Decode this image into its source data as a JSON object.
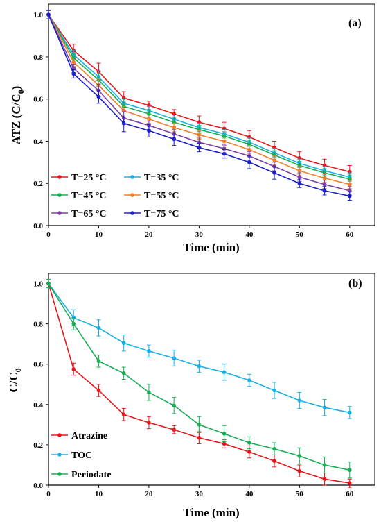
{
  "chart_data": [
    {
      "type": "line",
      "panel_label": "(a)",
      "xlabel": "Time (min)",
      "ylabel": "ATZ (C/C",
      "ylabel_sub": "0",
      "ylabel_end": ")",
      "xlim": [
        0,
        65
      ],
      "ylim": [
        0,
        1.05
      ],
      "xticks": [
        "0",
        "10",
        "20",
        "30",
        "40",
        "50",
        "60"
      ],
      "yticks": [
        "0.0",
        "0.2",
        "0.4",
        "0.6",
        "0.8",
        "1.0"
      ],
      "grid": false,
      "legend_position": "bottom-left",
      "x": [
        0,
        5,
        10,
        15,
        20,
        25,
        30,
        35,
        40,
        45,
        50,
        55,
        60
      ],
      "series": [
        {
          "name": "T=25 °C",
          "color": "#e8161b",
          "values": [
            1.0,
            0.83,
            0.73,
            0.605,
            0.57,
            0.53,
            0.49,
            0.46,
            0.42,
            0.37,
            0.32,
            0.285,
            0.255
          ],
          "errors": [
            0.02,
            0.03,
            0.04,
            0.03,
            0.02,
            0.02,
            0.03,
            0.03,
            0.03,
            0.03,
            0.03,
            0.03,
            0.03
          ]
        },
        {
          "name": "T=35 °C",
          "color": "#18b0e6",
          "values": [
            1.0,
            0.81,
            0.705,
            0.58,
            0.545,
            0.505,
            0.465,
            0.435,
            0.395,
            0.345,
            0.295,
            0.26,
            0.23
          ],
          "errors": [
            0.02,
            0.02,
            0.03,
            0.02,
            0.02,
            0.02,
            0.02,
            0.02,
            0.02,
            0.02,
            0.02,
            0.02,
            0.02
          ]
        },
        {
          "name": "T=45 °C",
          "color": "#18ad55",
          "values": [
            1.0,
            0.795,
            0.69,
            0.565,
            0.53,
            0.49,
            0.455,
            0.425,
            0.385,
            0.335,
            0.285,
            0.25,
            0.22
          ],
          "errors": [
            0.02,
            0.02,
            0.03,
            0.02,
            0.02,
            0.02,
            0.02,
            0.02,
            0.02,
            0.02,
            0.02,
            0.02,
            0.02
          ]
        },
        {
          "name": "T=55 °C",
          "color": "#f07f2a",
          "values": [
            1.0,
            0.775,
            0.665,
            0.545,
            0.505,
            0.465,
            0.43,
            0.4,
            0.36,
            0.31,
            0.26,
            0.225,
            0.195
          ],
          "errors": [
            0.02,
            0.02,
            0.03,
            0.02,
            0.02,
            0.02,
            0.02,
            0.02,
            0.02,
            0.02,
            0.02,
            0.02,
            0.02
          ]
        },
        {
          "name": "T=65 °C",
          "color": "#7b3fa6",
          "values": [
            1.0,
            0.745,
            0.64,
            0.51,
            0.475,
            0.435,
            0.395,
            0.365,
            0.33,
            0.28,
            0.23,
            0.195,
            0.165
          ],
          "errors": [
            0.02,
            0.02,
            0.03,
            0.03,
            0.02,
            0.02,
            0.02,
            0.02,
            0.02,
            0.02,
            0.02,
            0.02,
            0.02
          ]
        },
        {
          "name": "T=75 °C",
          "color": "#1b1fc8",
          "values": [
            1.0,
            0.72,
            0.61,
            0.485,
            0.45,
            0.41,
            0.37,
            0.34,
            0.3,
            0.25,
            0.2,
            0.165,
            0.14
          ],
          "errors": [
            0.02,
            0.02,
            0.03,
            0.04,
            0.03,
            0.03,
            0.02,
            0.02,
            0.03,
            0.03,
            0.02,
            0.02,
            0.02
          ]
        }
      ]
    },
    {
      "type": "line",
      "panel_label": "(b)",
      "xlabel": "Time (min)",
      "ylabel": "C/C",
      "ylabel_sub": "0",
      "ylabel_end": "",
      "xlim": [
        0,
        65
      ],
      "ylim": [
        0,
        1.05
      ],
      "xticks": [
        "0",
        "10",
        "20",
        "30",
        "40",
        "50",
        "60"
      ],
      "yticks": [
        "0.0",
        "0.2",
        "0.4",
        "0.6",
        "0.8",
        "1.0"
      ],
      "grid": false,
      "legend_position": "bottom-left",
      "x": [
        0,
        5,
        10,
        15,
        20,
        25,
        30,
        35,
        40,
        45,
        50,
        55,
        60
      ],
      "series": [
        {
          "name": "Atrazine",
          "color": "#e8161b",
          "values": [
            1.0,
            0.575,
            0.47,
            0.35,
            0.31,
            0.275,
            0.235,
            0.205,
            0.165,
            0.12,
            0.07,
            0.03,
            0.01
          ],
          "errors": [
            0.02,
            0.03,
            0.03,
            0.03,
            0.03,
            0.02,
            0.03,
            0.02,
            0.03,
            0.03,
            0.03,
            0.03,
            0.02
          ]
        },
        {
          "name": "TOC",
          "color": "#18b0e6",
          "values": [
            1.0,
            0.83,
            0.78,
            0.705,
            0.665,
            0.63,
            0.59,
            0.56,
            0.52,
            0.47,
            0.42,
            0.385,
            0.36
          ],
          "errors": [
            0.02,
            0.04,
            0.04,
            0.04,
            0.03,
            0.04,
            0.03,
            0.04,
            0.03,
            0.04,
            0.04,
            0.04,
            0.03
          ]
        },
        {
          "name": "Periodate",
          "color": "#18ad55",
          "values": [
            1.0,
            0.8,
            0.615,
            0.555,
            0.46,
            0.395,
            0.3,
            0.255,
            0.21,
            0.18,
            0.145,
            0.1,
            0.075
          ],
          "errors": [
            0.02,
            0.03,
            0.03,
            0.03,
            0.04,
            0.04,
            0.04,
            0.04,
            0.03,
            0.03,
            0.04,
            0.04,
            0.04
          ]
        }
      ]
    }
  ]
}
